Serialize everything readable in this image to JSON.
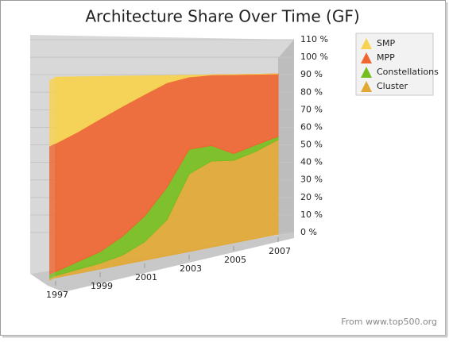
{
  "chart_data": {
    "type": "area",
    "stacked": true,
    "title": "Architecture Share Over Time (GF)",
    "note": "From www.top500.org",
    "x": [
      1997,
      1998,
      1999,
      2000,
      2001,
      2002,
      2003,
      2004,
      2005,
      2006,
      2007
    ],
    "xlim": [
      1997,
      2007
    ],
    "xticks": [
      1997,
      1999,
      2001,
      2003,
      2005,
      2007
    ],
    "ylim": [
      0,
      110
    ],
    "yticks": [
      {
        "value": 0,
        "label": "0 %"
      },
      {
        "value": 10,
        "label": "10 %"
      },
      {
        "value": 20,
        "label": "20 %"
      },
      {
        "value": 30,
        "label": "30 %"
      },
      {
        "value": 40,
        "label": "40 %"
      },
      {
        "value": 50,
        "label": "50 %"
      },
      {
        "value": 60,
        "label": "60 %"
      },
      {
        "value": 70,
        "label": "70 %"
      },
      {
        "value": 80,
        "label": "80 %"
      },
      {
        "value": 90,
        "label": "90 %"
      },
      {
        "value": 100,
        "label": "100 %"
      },
      {
        "value": 110,
        "label": "110 %"
      }
    ],
    "series": [
      {
        "name": "SMP",
        "color": "#f7d24e",
        "values": [
          33,
          28,
          22,
          16,
          10,
          4,
          1,
          0,
          0,
          0,
          0
        ]
      },
      {
        "name": "MPP",
        "color": "#ef6531",
        "values": [
          64,
          66,
          69,
          69,
          66,
          58,
          41,
          41,
          47,
          43,
          39
        ]
      },
      {
        "name": "Constellations",
        "color": "#76be1e",
        "values": [
          2,
          4,
          6,
          10,
          14,
          18,
          14,
          9,
          4,
          4,
          2
        ]
      },
      {
        "name": "Cluster",
        "color": "#e2a834",
        "values": [
          1,
          2,
          3,
          5,
          10,
          20,
          44,
          50,
          49,
          53,
          59
        ]
      }
    ]
  }
}
